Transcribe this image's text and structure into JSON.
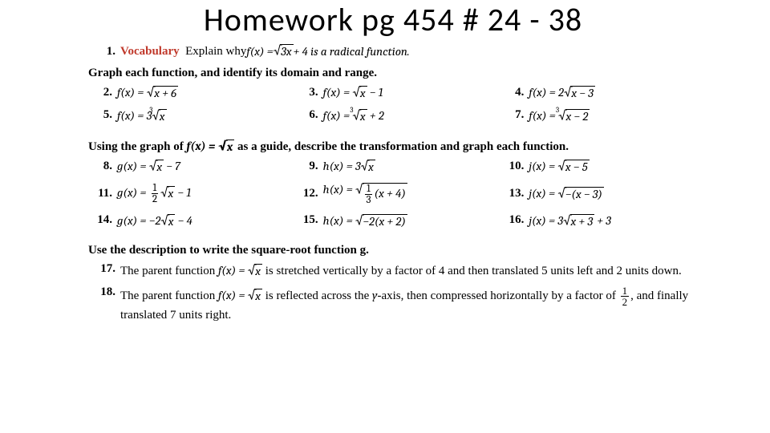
{
  "title": "Homework pg 454 # 24 - 38",
  "q1": {
    "num": "1.",
    "vocab": "Vocabulary",
    "before": "Explain why ",
    "fx": "f(x) = ",
    "rad": "3x",
    "after": " + 4 is a radical function."
  },
  "sectionA": "Graph each function, and identify its domain and range.",
  "rowsA": [
    {
      "n": "2.",
      "fn": "f(x) = ",
      "pre": "",
      "rad": "x + 6",
      "idx": "",
      "post": ""
    },
    {
      "n": "3.",
      "fn": "f(x) = ",
      "pre": "",
      "rad": "x",
      "idx": "",
      "post": " − 1"
    },
    {
      "n": "4.",
      "fn": "f(x) = ",
      "pre": "2",
      "rad": "x − 3",
      "idx": "",
      "post": ""
    },
    {
      "n": "5.",
      "fn": "f(x) = ",
      "pre": "3",
      "rad": "x",
      "idx": "3",
      "post": ""
    },
    {
      "n": "6.",
      "fn": "f(x) = ",
      "pre": "",
      "rad": "x",
      "idx": "3",
      "post": " + 2"
    },
    {
      "n": "7.",
      "fn": "f(x) = ",
      "pre": "",
      "rad": "x − 2",
      "idx": "3",
      "post": ""
    }
  ],
  "sectionB_a": "Using the graph of ",
  "sectionB_fx": "f(x) = ",
  "sectionB_rad": "x",
  "sectionB_b": " as a guide, describe the transformation and graph each function.",
  "rowsB": [
    {
      "n": "8.",
      "fn": "g(x) = ",
      "pre": "",
      "rad": "x",
      "post": " − 7",
      "frac": null,
      "fracAfter": ""
    },
    {
      "n": "9.",
      "fn": "h(x) = ",
      "pre": "3",
      "rad": "x",
      "post": "",
      "frac": null,
      "fracAfter": ""
    },
    {
      "n": "10.",
      "fn": "j(x) = ",
      "pre": "",
      "rad": "x − 5",
      "post": "",
      "frac": null,
      "fracAfter": ""
    },
    {
      "n": "11.",
      "fn": "g(x) = ",
      "pre": "",
      "rad": "x",
      "post": " − 1",
      "frac": {
        "n": "1",
        "d": "2"
      },
      "fracAfter": ""
    },
    {
      "n": "12.",
      "fn": "h(x) = ",
      "pre": "",
      "rad": "",
      "post": "",
      "frac": {
        "n": "1",
        "d": "3"
      },
      "fracAfter": "(x + 4)",
      "radWrapsFrac": true
    },
    {
      "n": "13.",
      "fn": "j(x) = ",
      "pre": "",
      "rad": "−(x − 3)",
      "post": "",
      "frac": null,
      "fracAfter": ""
    },
    {
      "n": "14.",
      "fn": "g(x) = ",
      "pre": "−2",
      "rad": "x",
      "post": " − 4",
      "frac": null,
      "fracAfter": ""
    },
    {
      "n": "15.",
      "fn": "h(x) = ",
      "pre": "",
      "rad": "−2(x + 2)",
      "post": "",
      "frac": null,
      "fracAfter": ""
    },
    {
      "n": "16.",
      "fn": "j(x) = ",
      "pre": "3",
      "rad": "x + 3",
      "post": " + 3",
      "frac": null,
      "fracAfter": ""
    }
  ],
  "sectionC": "Use the description to write the square-root function g.",
  "q17": {
    "n": "17.",
    "a": "The parent function ",
    "fx": "f(x) = ",
    "rad": "x",
    "b": " is stretched vertically by a factor of 4 and then translated 5 units left and 2 units down."
  },
  "q18": {
    "n": "18.",
    "a": "The parent function ",
    "fx": "f(x) = ",
    "rad": "x",
    "b": " is reflected across the ",
    "yaxis": "y",
    "c": "-axis, then compressed horizontally by a factor of ",
    "d": ", and finally translated 7 units right."
  }
}
